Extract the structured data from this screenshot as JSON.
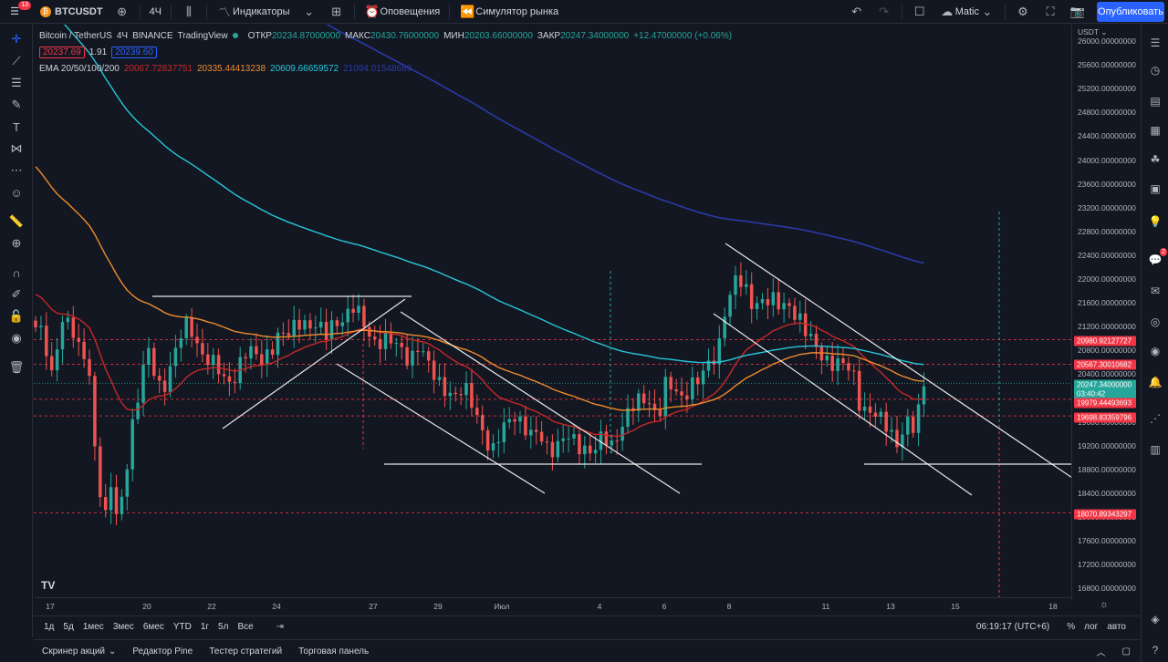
{
  "topbar": {
    "notif_count": "13",
    "symbol": "BTCUSDT",
    "interval": "4Ч",
    "indicators": "Индикаторы",
    "alerts": "Оповещения",
    "replay": "Симулятор рынка",
    "layout_name": "Matic",
    "publish": "Опубликовать"
  },
  "legend": {
    "pair": "Bitcoin / TetherUS",
    "interval": "4Ч",
    "exchange": "BINANCE",
    "source": "TradingView",
    "open_label": "ОТКР",
    "open": "20234.87000000",
    "high_label": "МАКС",
    "high": "20430.76000000",
    "low_label": "МИН",
    "low": "20203.66000000",
    "close_label": "ЗАКР",
    "close": "20247.34000000",
    "change": "+12.47000000 (+0.06%)",
    "sell_price": "20237.69",
    "spread": "1.91",
    "buy_price": "20239.60",
    "ema_label": "EMA 20/50/100/200",
    "ema20": "20067.72837751",
    "ema50": "20335.44413238",
    "ema100": "20609.66659572",
    "ema200": "21094.01548689"
  },
  "colors": {
    "up": "#26a69a",
    "down": "#ef5350",
    "ema20": "#c62828",
    "ema50": "#ef8b2c",
    "ema100": "#26c6da",
    "ema200": "#2a3aa8",
    "accent": "#2962ff"
  },
  "price_axis": {
    "currency": "USDT",
    "ticks": [
      "26000.00000000",
      "25600.00000000",
      "25200.00000000",
      "24800.00000000",
      "24400.00000000",
      "24000.00000000",
      "23600.00000000",
      "23200.00000000",
      "22800.00000000",
      "22400.00000000",
      "22000.00000000",
      "21600.00000000",
      "21200.00000000",
      "20800.00000000",
      "20400.00000000",
      "20000.00000000",
      "19600.00000000",
      "19200.00000000",
      "18800.00000000",
      "18400.00000000",
      "18000.00000000",
      "17600.00000000",
      "17200.00000000",
      "16800.00000000"
    ],
    "tags": [
      {
        "value": "20980.92127727",
        "color": "#f23645"
      },
      {
        "value": "20567.30010682",
        "color": "#f23645"
      },
      {
        "value": "20247.34000000",
        "color": "#26a69a"
      },
      {
        "value": "03:40:42",
        "color": "#26a69a"
      },
      {
        "value": "19979.44493693",
        "color": "#f23645"
      },
      {
        "value": "19698.83359796",
        "color": "#f23645"
      },
      {
        "value": "18070.89343297",
        "color": "#f23645"
      }
    ]
  },
  "time_axis": {
    "labels": [
      "17",
      "20",
      "22",
      "24",
      "27",
      "29",
      "Июл",
      "4",
      "6",
      "8",
      "11",
      "13",
      "15",
      "18"
    ]
  },
  "range_bar": {
    "ranges": [
      "1д",
      "5д",
      "1мес",
      "3мес",
      "6мес",
      "YTD",
      "1г",
      "5л",
      "Все"
    ],
    "clock": "06:19:17 (UTC+6)",
    "percent": "%",
    "log": "лог",
    "auto": "авто"
  },
  "bottom_panel": {
    "tabs": [
      "Скринер акций",
      "Редактор Pine",
      "Тестер стратегий",
      "Торговая панель"
    ]
  }
}
